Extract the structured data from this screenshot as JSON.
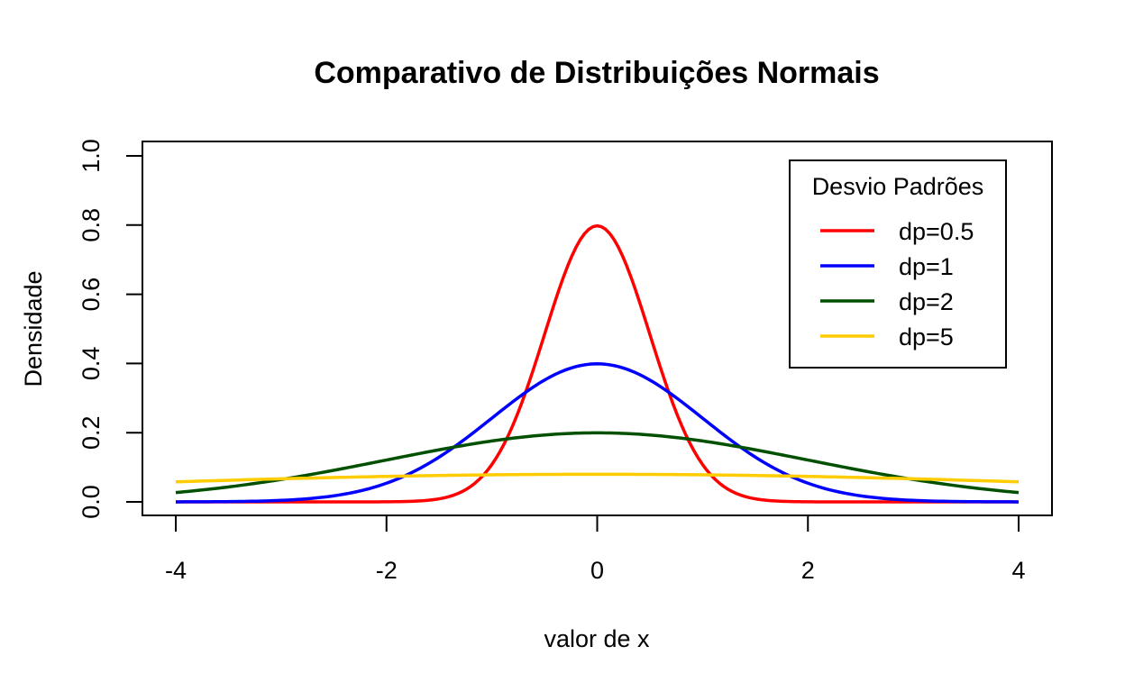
{
  "chart_data": {
    "type": "line",
    "title": "Comparativo de Distribuições Normais",
    "xlabel": "valor de x",
    "ylabel": "Densidade",
    "xlim": [
      -4,
      4
    ],
    "ylim": [
      0,
      1
    ],
    "x_ticks": [
      "-4",
      "-2",
      "0",
      "2",
      "4"
    ],
    "y_ticks": [
      "0.0",
      "0.2",
      "0.4",
      "0.6",
      "0.8",
      "1.0"
    ],
    "grid": false,
    "legend": {
      "title": "Desvio Padrões",
      "position": "top-right",
      "entries": [
        "dp=0.5",
        "dp=1",
        "dp=2",
        "dp=5"
      ]
    },
    "series": [
      {
        "name": "dp=0.5",
        "mean": 0,
        "sd": 0.5,
        "color": "#ff0000"
      },
      {
        "name": "dp=1",
        "mean": 0,
        "sd": 1,
        "color": "#0000ff"
      },
      {
        "name": "dp=2",
        "mean": 0,
        "sd": 2,
        "color": "#005000"
      },
      {
        "name": "dp=5",
        "mean": 0,
        "sd": 5,
        "color": "#ffcc00"
      }
    ]
  }
}
